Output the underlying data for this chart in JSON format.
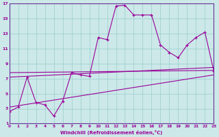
{
  "xlabel": "Windchill (Refroidissement éolien,°C)",
  "bg_color": "#cce8e8",
  "grid_color": "#99cccc",
  "line_color": "#990099",
  "spine_color": "#663399",
  "xlim": [
    0,
    23
  ],
  "ylim": [
    1,
    17
  ],
  "xticks": [
    0,
    1,
    2,
    3,
    4,
    5,
    6,
    7,
    8,
    9,
    10,
    11,
    12,
    13,
    14,
    15,
    16,
    17,
    18,
    19,
    20,
    21,
    22,
    23
  ],
  "yticks": [
    1,
    3,
    5,
    7,
    9,
    11,
    13,
    15,
    17
  ],
  "zigzag": {
    "x": [
      0,
      1,
      2,
      3,
      4,
      5,
      6,
      7,
      8,
      9,
      10,
      11,
      12,
      13,
      14,
      15,
      16,
      17,
      18,
      19,
      20,
      21,
      22,
      23
    ],
    "y": [
      2.6,
      3.2,
      7.2,
      3.8,
      3.5,
      2.0,
      4.0,
      7.8,
      7.5,
      7.3,
      12.5,
      12.2,
      16.7,
      16.8,
      15.5,
      15.5,
      15.5,
      11.5,
      10.5,
      9.8,
      11.5,
      12.5,
      13.2,
      8.0
    ]
  },
  "straight_lines": [
    {
      "x0": 0,
      "y0": 7.8,
      "x1": 23,
      "y1": 8.1
    },
    {
      "x0": 0,
      "y0": 7.2,
      "x1": 23,
      "y1": 8.5
    },
    {
      "x0": 0,
      "y0": 3.2,
      "x1": 23,
      "y1": 7.5
    }
  ]
}
